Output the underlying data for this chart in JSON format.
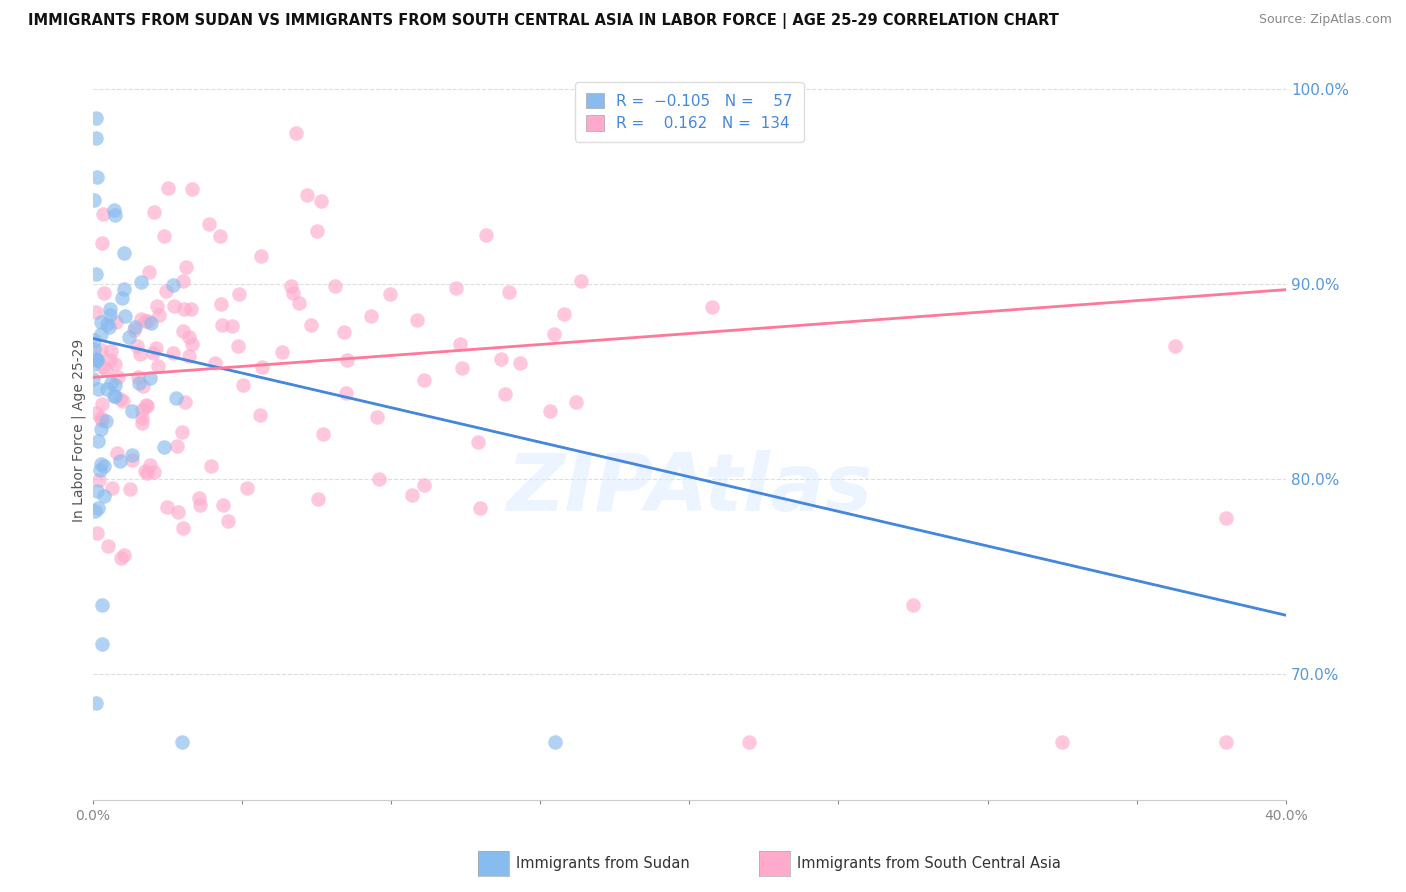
{
  "title": "IMMIGRANTS FROM SUDAN VS IMMIGRANTS FROM SOUTH CENTRAL ASIA IN LABOR FORCE | AGE 25-29 CORRELATION CHART",
  "source": "Source: ZipAtlas.com",
  "ylabel": "In Labor Force | Age 25-29",
  "xlim": [
    0.0,
    0.4
  ],
  "ylim": [
    0.635,
    1.015
  ],
  "sudan_R": -0.105,
  "sudan_N": 57,
  "sca_R": 0.162,
  "sca_N": 134,
  "sudan_color": "#88BBEE",
  "sca_color": "#FFAACC",
  "sudan_line_color": "#4488DD",
  "sca_line_color": "#FF7799",
  "dashed_line_color": "#BBBBBB",
  "background_color": "#FFFFFF",
  "grid_color": "#DDDDDD",
  "ytick_color": "#5599DD",
  "xtick_color": "#5599DD",
  "legend_label_sudan": "Immigrants from Sudan",
  "legend_label_sca": "Immigrants from South Central Asia",
  "sudan_line_x0": 0.0,
  "sudan_line_y0": 0.872,
  "sudan_line_x1": 0.4,
  "sudan_line_y1": 0.73,
  "sca_line_x0": 0.0,
  "sca_line_y0": 0.852,
  "sca_line_x1": 0.4,
  "sca_line_y1": 0.897,
  "yticks": [
    0.7,
    0.8,
    0.9,
    1.0
  ],
  "ytick_labels": [
    "70.0%",
    "80.0%",
    "90.0%",
    "100.0%"
  ]
}
